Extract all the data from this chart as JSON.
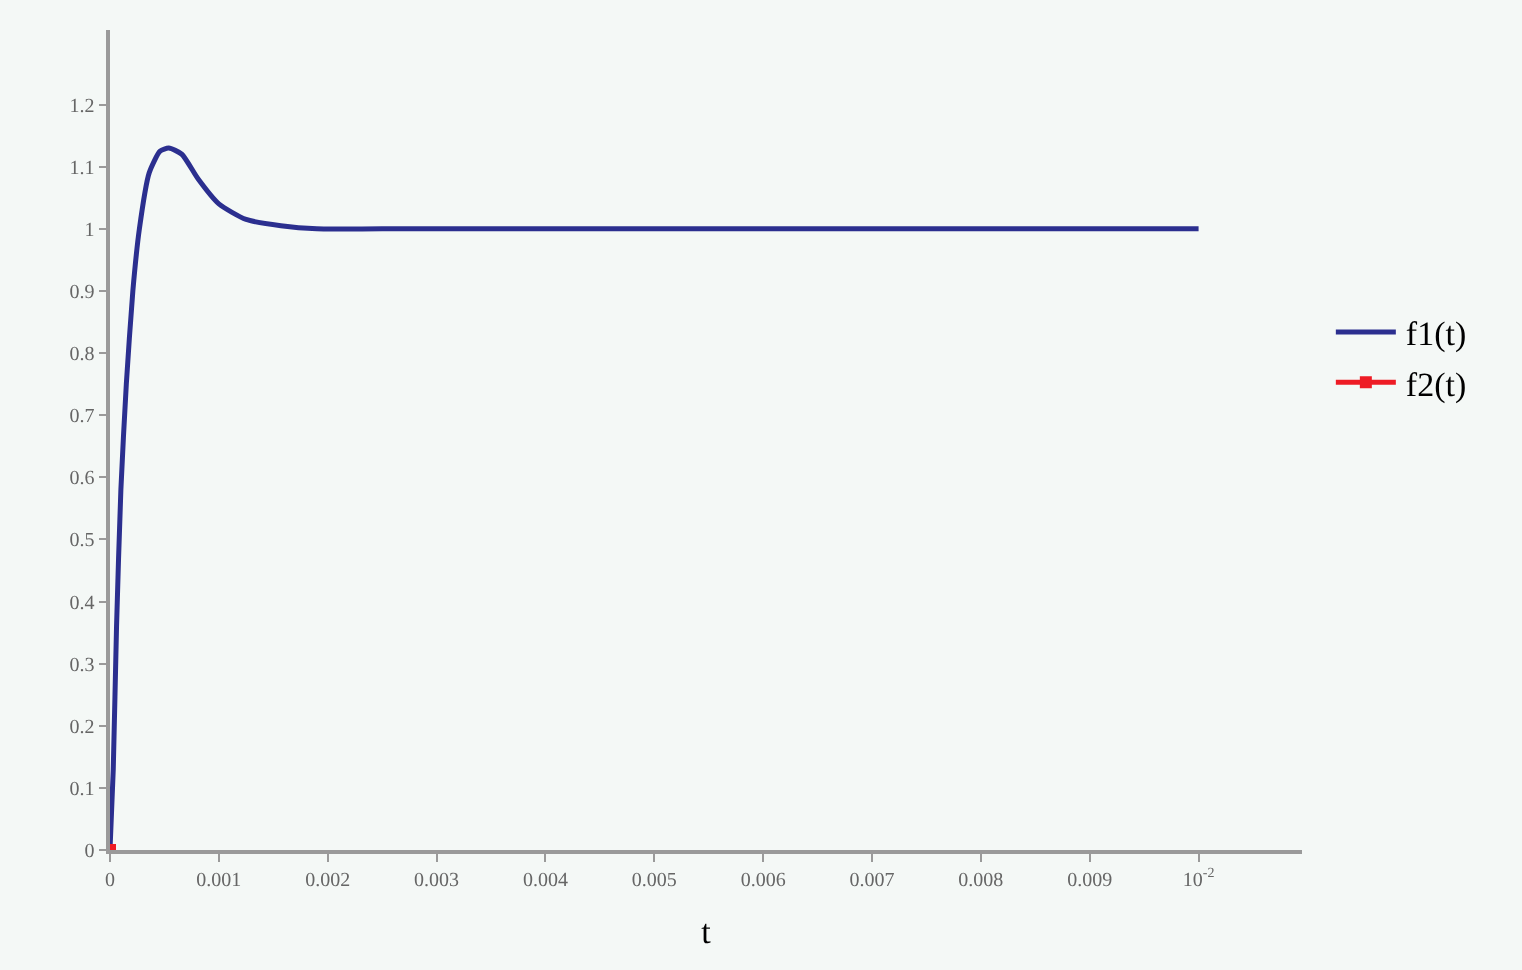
{
  "chart_data": {
    "type": "line",
    "xlabel": "t",
    "series": [
      {
        "name": "f1(t)",
        "color": "#2b2f8f",
        "x": [
          0,
          3e-05,
          6e-05,
          0.0001,
          0.00015,
          0.00021,
          0.00027,
          0.00036,
          0.00046,
          0.00054,
          0.00066,
          0.00081,
          0.001,
          0.00125,
          0.00157,
          0.0019,
          0.0025,
          0.005,
          0.0075,
          0.01
        ],
        "values": [
          0,
          0.13,
          0.36,
          0.58,
          0.75,
          0.9,
          1.0,
          1.09,
          1.125,
          1.13,
          1.12,
          1.08,
          1.04,
          1.015,
          1.005,
          1.0,
          1.0,
          1.0,
          1.0,
          1.0
        ]
      },
      {
        "name": "f2(t)",
        "color": "#ee1c25",
        "marker": "square",
        "x": [
          0
        ],
        "values": [
          0
        ]
      }
    ],
    "xlim": [
      0,
      0.01095
    ],
    "ylim": [
      0,
      1.32
    ],
    "xticks": [
      0,
      0.001,
      0.002,
      0.003,
      0.004,
      0.005,
      0.006,
      0.007,
      0.008,
      0.009,
      {
        "value": 0.01,
        "label": "10$^{-2}$"
      }
    ],
    "yticks": [
      0,
      0.1,
      0.2,
      0.3,
      0.4,
      0.5,
      0.6,
      0.7,
      0.8,
      0.9,
      1,
      1.1,
      1.2
    ],
    "legend": "right",
    "grid": false
  }
}
